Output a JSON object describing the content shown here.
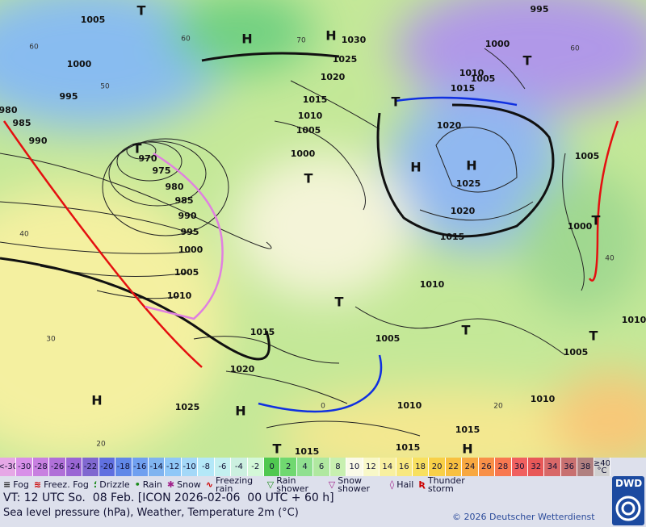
{
  "map": {
    "isobar_labels": [
      "1005",
      "1000",
      "995",
      "980",
      "985",
      "990",
      "970",
      "975",
      "980",
      "985",
      "990",
      "995",
      "1000",
      "1005",
      "1010",
      "1015",
      "1020",
      "1025",
      "1030",
      "1025",
      "1020",
      "1015",
      "1010",
      "1005",
      "1000",
      "995",
      "1000",
      "1005",
      "1010",
      "1015",
      "1020",
      "1025",
      "1020",
      "1015",
      "1005",
      "1000",
      "1010",
      "1005",
      "1010",
      "1015",
      "1015",
      "1015",
      "1005",
      "1010",
      "1010"
    ],
    "temperature_labels": [
      "60",
      "60",
      "70",
      "50",
      "40",
      "30",
      "20",
      "0",
      "20",
      "40",
      "60"
    ],
    "pressure_centers": [
      "T",
      "H",
      "H",
      "T",
      "T",
      "T",
      "H",
      "H",
      "T",
      "T",
      "T",
      "T",
      "T",
      "H",
      "H",
      "T",
      "H"
    ]
  },
  "legend": {
    "scale_labels": [
      "<-30",
      "-30",
      "-28",
      "-26",
      "-24",
      "-22",
      "-20",
      "-18",
      "-16",
      "-14",
      "-12",
      "-10",
      "-8",
      "-6",
      "-4",
      "-2",
      "0",
      "2",
      "4",
      "6",
      "8",
      "10",
      "12",
      "14",
      "16",
      "18",
      "20",
      "22",
      "24",
      "26",
      "28",
      "30",
      "32",
      "34",
      "36",
      "38",
      "≥40 °C"
    ],
    "scale_colors": [
      "#e6a8e6",
      "#d890e8",
      "#c880e0",
      "#b070d8",
      "#9a66d4",
      "#8068d0",
      "#6070e0",
      "#6088e8",
      "#70a0f0",
      "#80b4f0",
      "#90c8f8",
      "#a4d8f8",
      "#b4e8f8",
      "#c4f0f0",
      "#ccf0e0",
      "#d4f8d8",
      "#50c850",
      "#70d870",
      "#90e090",
      "#b0e8a0",
      "#c8f0b0",
      "#fafae8",
      "#f8f8c8",
      "#f8f0a0",
      "#f8e880",
      "#f8e060",
      "#f8d048",
      "#f8c040",
      "#f8a840",
      "#f89048",
      "#f87850",
      "#f06060",
      "#e85858",
      "#d86868",
      "#c87070",
      "#b08080",
      "#d0d0d0"
    ],
    "weather": [
      "Fog",
      "Freez. Fog",
      "Drizzle",
      "Rain",
      "Snow",
      "Freezing rain",
      "Rain shower",
      "Snow shower",
      "Hail",
      "Thunder storm"
    ]
  },
  "footer": {
    "valid_time": "VT: 12 UTC So.  08 Feb. [ICON 2026-02-06  00 UTC + 60 h]",
    "description": "Sea level pressure (hPa), Weather, Temperature 2m (°C)",
    "copyright": "© 2026 Deutscher Wetterdienst",
    "logo": "DWD"
  }
}
